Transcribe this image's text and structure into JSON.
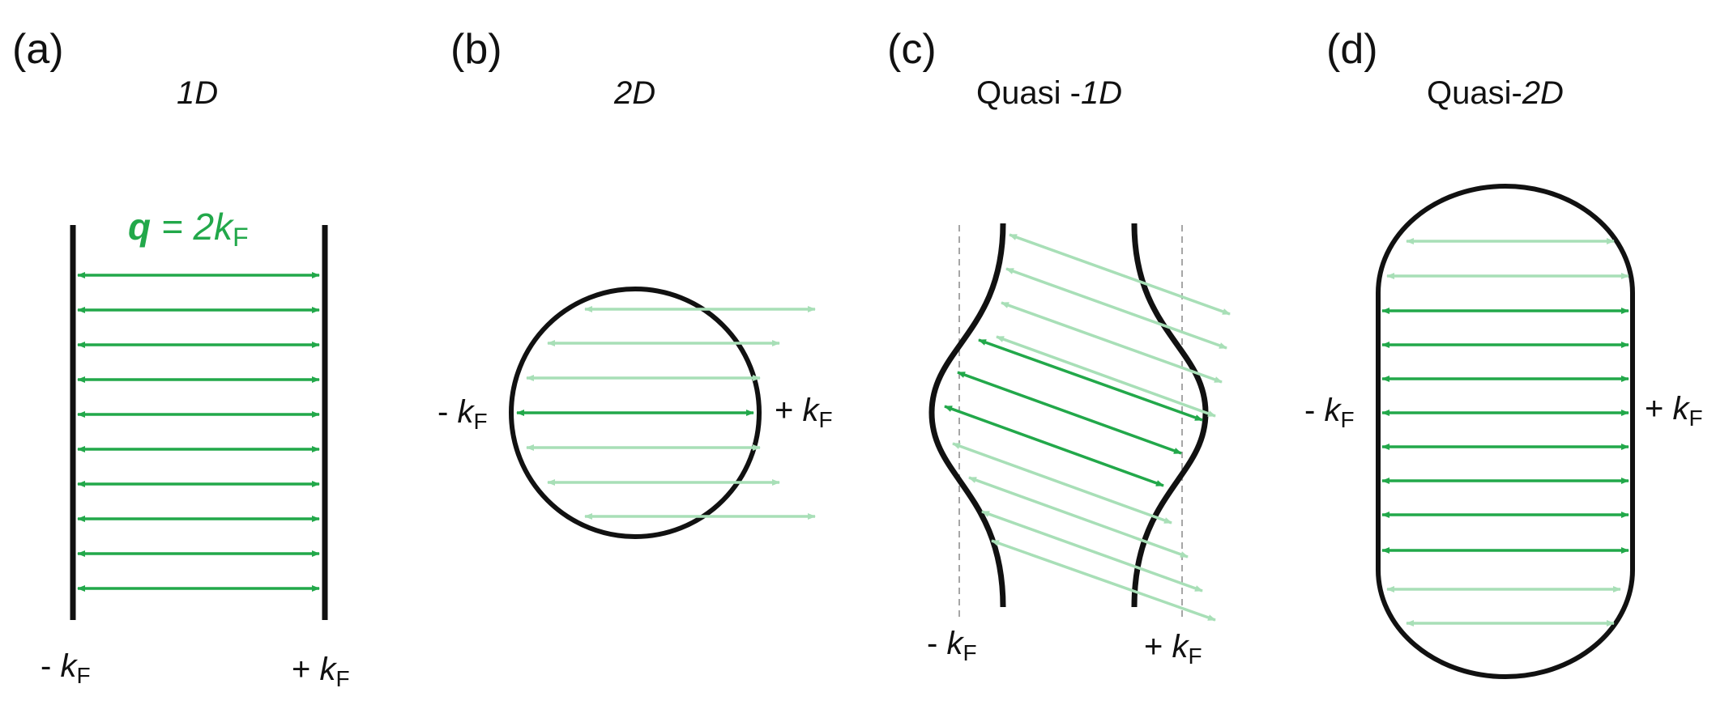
{
  "colors": {
    "strong": "#22a84a",
    "faint": "#a8dfb7",
    "surface": "#111111",
    "guide": "#888888"
  },
  "panels": [
    {
      "id": "a",
      "label": "(a)",
      "title_plain": "",
      "title_italic": "1D",
      "kminus_sign": "- ",
      "kplus_sign": "+ ",
      "k": "k",
      "sub": "F"
    },
    {
      "id": "b",
      "label": "(b)",
      "title_plain": "",
      "title_italic": "2D",
      "kminus_sign": "- ",
      "kplus_sign": "+ ",
      "k": "k",
      "sub": "F"
    },
    {
      "id": "c",
      "label": "(c)",
      "title_plain": "Quasi -",
      "title_italic": "1D",
      "kminus_sign": "- ",
      "kplus_sign": "+ ",
      "k": "k",
      "sub": "F"
    },
    {
      "id": "d",
      "label": "(d)",
      "title_plain": "Quasi-",
      "title_italic": "2D",
      "kminus_sign": "- ",
      "kplus_sign": "+ ",
      "k": "k",
      "sub": "F"
    }
  ],
  "nesting_vector": {
    "bold": "q",
    "eq": " = 2",
    "k": "k",
    "sub": "F"
  }
}
